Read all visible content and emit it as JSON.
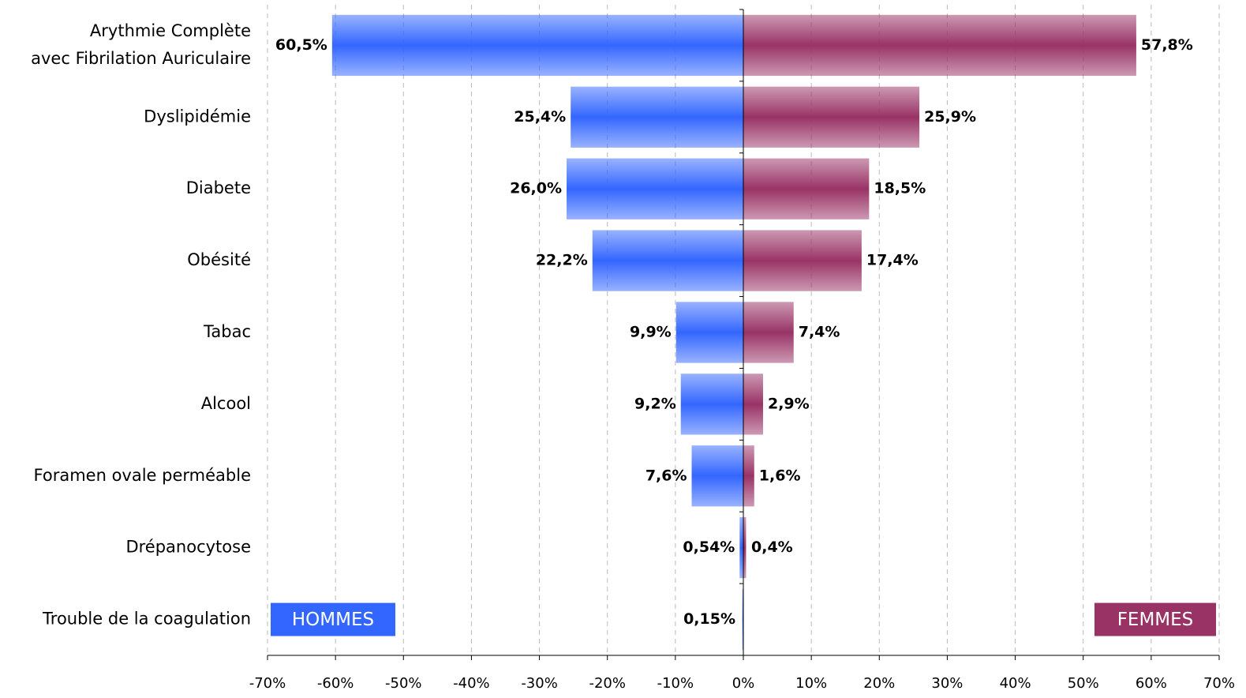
{
  "chart_data": {
    "type": "butterfly",
    "categories": [
      "Arythmie Complète\navec Fibrilation Auriculaire",
      "Dyslipidémie",
      "Diabete",
      "Obésité",
      "Tabac",
      "Alcool",
      "Foramen ovale perméable",
      "Drépanocytose",
      "Trouble de la coagulation"
    ],
    "series": [
      {
        "name": "HOMMES",
        "color": "#3366ff",
        "values": [
          -60.5,
          -25.4,
          -26.0,
          -22.2,
          -9.9,
          -9.2,
          -7.6,
          -0.54,
          -0.15
        ],
        "value_labels": [
          "60,5%",
          "25,4%",
          "26,0%",
          "22,2%",
          "9,9%",
          "9,2%",
          "7,6%",
          "0,54%",
          "0,15%"
        ]
      },
      {
        "name": "FEMMES",
        "color": "#993366",
        "values": [
          57.8,
          25.9,
          18.5,
          17.4,
          7.4,
          2.9,
          1.6,
          0.4,
          null
        ],
        "value_labels": [
          "57,8%",
          "25,9%",
          "18,5%",
          "17,4%",
          "7,4%",
          "2,9%",
          "1,6%",
          "0,4%",
          null
        ]
      }
    ],
    "xlim": [
      -70,
      70
    ],
    "xticks": [
      {
        "value": -70,
        "label": "-70%"
      },
      {
        "value": -60,
        "label": "-60%"
      },
      {
        "value": -50,
        "label": "-50%"
      },
      {
        "value": -40,
        "label": "-40%"
      },
      {
        "value": -30,
        "label": "-30%"
      },
      {
        "value": -20,
        "label": "-20%"
      },
      {
        "value": -10,
        "label": "-10%"
      },
      {
        "value": 0,
        "label": "0%"
      },
      {
        "value": 10,
        "label": "10%"
      },
      {
        "value": 20,
        "label": "20%"
      },
      {
        "value": 30,
        "label": "30%"
      },
      {
        "value": 40,
        "label": "40%"
      },
      {
        "value": 50,
        "label": "50%"
      },
      {
        "value": 60,
        "label": "60%"
      },
      {
        "value": 70,
        "label": "70%"
      }
    ],
    "grid": true
  }
}
